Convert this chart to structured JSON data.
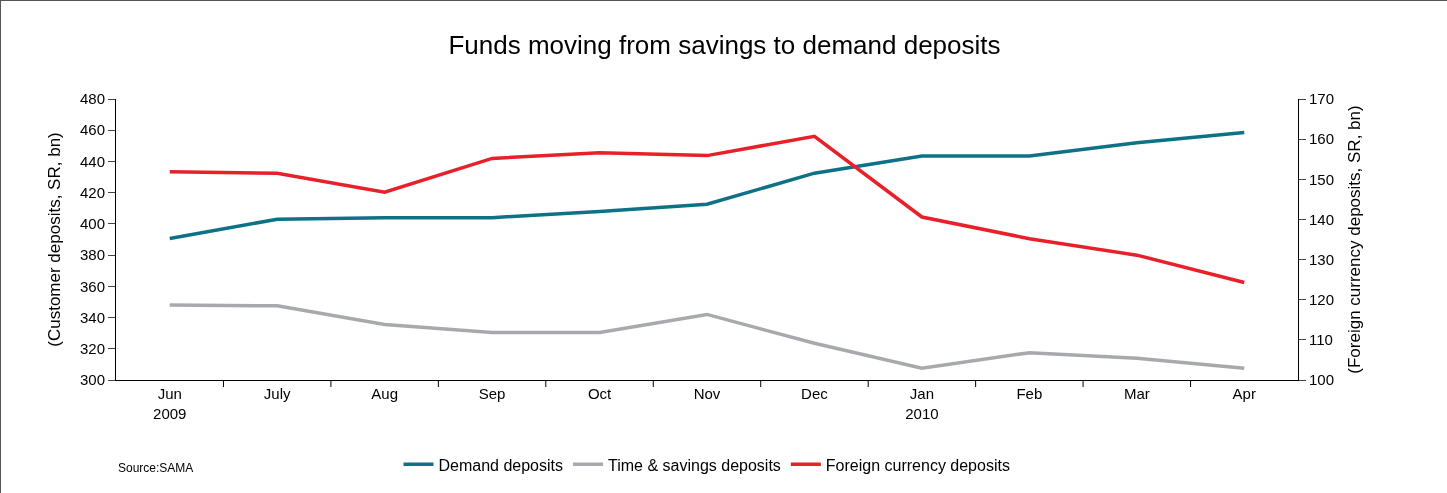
{
  "chart_data": {
    "type": "line",
    "title": "Funds moving from savings to demand deposits",
    "ylabel": "(Customer deposits, SR, bn)",
    "y2label": "(Foreign currency deposits, SR, bn)",
    "categories": [
      "Jun\n2009",
      "July",
      "Aug",
      "Sep",
      "Oct",
      "Nov",
      "Dec",
      "Jan\n2010",
      "Feb",
      "Mar",
      "Apr"
    ],
    "series": [
      {
        "name": "Demand deposits",
        "color": "#0e7185",
        "values": [
          390.6,
          403,
          404,
          404,
          408,
          412.6,
          432.5,
          443.5,
          443.5,
          452,
          458.5
        ]
      },
      {
        "name": "Time & savings deposits",
        "color": "#a7a9ac",
        "values": [
          348,
          347.5,
          335.5,
          330.5,
          330.5,
          342,
          323.5,
          307.5,
          317.5,
          314,
          307.5
        ]
      },
      {
        "name": "Foreign currency deposits",
        "color": "#e8202a",
        "axis": "y2",
        "values": [
          151.9,
          151.5,
          146.8,
          155.2,
          156.6,
          155.9,
          160.7,
          140.6,
          135.2,
          131.1,
          124.3
        ]
      }
    ],
    "ylim": [
      300,
      480
    ],
    "yticks": [
      300,
      320,
      340,
      360,
      380,
      400,
      420,
      440,
      460,
      480
    ],
    "y2lim": [
      100,
      170
    ],
    "y2ticks": [
      100,
      110,
      120,
      130,
      140,
      150,
      160,
      170
    ],
    "grid": false,
    "legend": "bottom",
    "marker": "none",
    "line_style": "solid",
    "annotations": [
      "Source:SAMA"
    ]
  }
}
